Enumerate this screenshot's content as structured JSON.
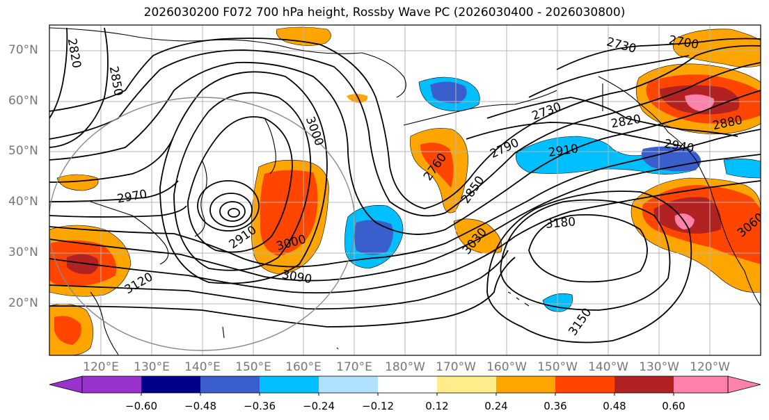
{
  "title": "2026030200 F072 700 hPa height, Rossby Wave PC (2026030400 - 2026030800)",
  "map": {
    "lat_labels": [
      "70°N",
      "60°N",
      "50°N",
      "40°N",
      "30°N",
      "20°N"
    ],
    "lon_labels": [
      "120°E",
      "130°E",
      "140°E",
      "150°E",
      "160°E",
      "170°E",
      "180°W",
      "170°W",
      "160°W",
      "150°W",
      "140°W",
      "130°W",
      "120°W"
    ],
    "contour_labels": [
      "2820",
      "2850",
      "2730",
      "2700",
      "3000",
      "2910",
      "2970",
      "3000",
      "3120",
      "3090",
      "2760",
      "2790",
      "2850",
      "3030",
      "2730",
      "2910",
      "2880",
      "2820",
      "2940",
      "3180",
      "3150",
      "3060"
    ]
  },
  "colorbar": {
    "ticks": [
      "−0.60",
      "−0.48",
      "−0.36",
      "−0.24",
      "−0.12",
      "0.12",
      "0.24",
      "0.36",
      "0.48",
      "0.60"
    ],
    "colors": [
      "#9932CC",
      "#00008B",
      "#3A5FCD",
      "#00BFFF",
      "#B0E2FF",
      "#FFFFFF",
      "#FFEC8B",
      "#FFA500",
      "#FF4500",
      "#B22222",
      "#FF82AB"
    ],
    "extend_low": "#9932CC",
    "extend_high": "#FF82AB"
  }
}
